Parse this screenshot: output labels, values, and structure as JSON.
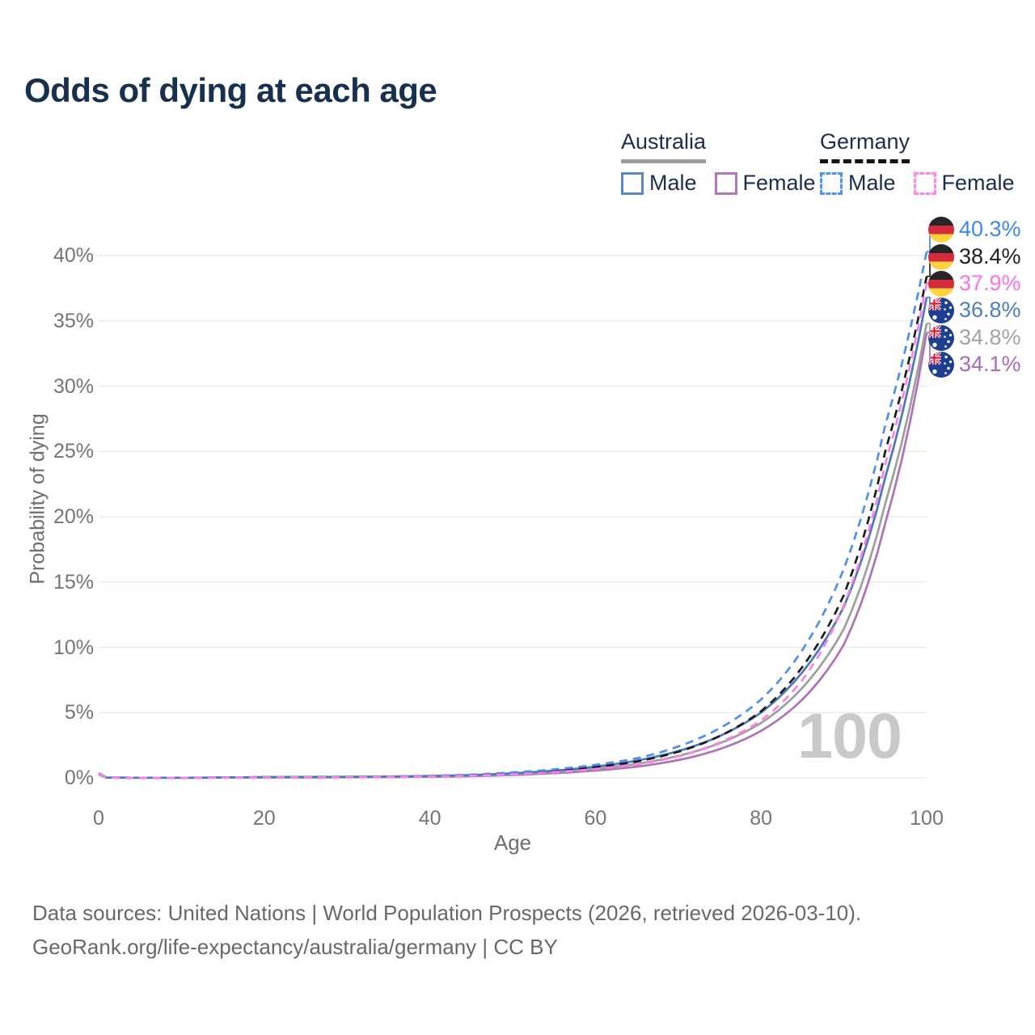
{
  "title": "Odds of dying at each age",
  "legend": {
    "groups": [
      {
        "label": "Australia",
        "line_style": "solid",
        "underline_color": "#9e9e9e",
        "items": [
          {
            "label": "Male",
            "color": "#5b87c7"
          },
          {
            "label": "Female",
            "color": "#b279ba"
          }
        ]
      },
      {
        "label": "Germany",
        "line_style": "dashed",
        "underline_color": "#141414",
        "items": [
          {
            "label": "Male",
            "color": "#4d94f2"
          },
          {
            "label": "Female",
            "color": "#ff85e6"
          }
        ]
      }
    ]
  },
  "chart_data": {
    "type": "line",
    "title": "Odds of dying at each age",
    "xlabel": "Age",
    "ylabel": "Probability of dying",
    "xlim": [
      0,
      100
    ],
    "ylim_percent": [
      0,
      42
    ],
    "x_ticks": [
      0,
      20,
      40,
      60,
      80,
      100
    ],
    "y_ticks": [
      "0%",
      "5%",
      "10%",
      "15%",
      "20%",
      "25%",
      "30%",
      "35%",
      "40%"
    ],
    "grid": "horizontal",
    "grid_color": "#ebebeb",
    "age_counter": "100",
    "ages": [
      0,
      1,
      2,
      5,
      10,
      15,
      20,
      25,
      30,
      35,
      40,
      45,
      50,
      55,
      60,
      65,
      70,
      75,
      80,
      85,
      90,
      95,
      100
    ],
    "series": [
      {
        "id": "au-female",
        "name": "Australia Female",
        "color": "#ad72b8",
        "dash": false,
        "values": [
          0.25,
          0.02,
          0.01,
          0.01,
          0.01,
          0.02,
          0.03,
          0.03,
          0.04,
          0.06,
          0.08,
          0.13,
          0.22,
          0.36,
          0.56,
          0.86,
          1.36,
          2.2,
          3.6,
          6.0,
          10.2,
          19.5,
          34.1
        ]
      },
      {
        "id": "au-total",
        "name": "Australia",
        "color": "#9e9e9e",
        "dash": false,
        "values": [
          0.28,
          0.02,
          0.02,
          0.01,
          0.01,
          0.02,
          0.04,
          0.05,
          0.06,
          0.08,
          0.11,
          0.17,
          0.28,
          0.45,
          0.7,
          1.07,
          1.68,
          2.65,
          4.2,
          6.9,
          11.4,
          21.0,
          34.8
        ]
      },
      {
        "id": "au-male",
        "name": "Australia Male",
        "color": "#4a79bb",
        "dash": false,
        "values": [
          0.3,
          0.02,
          0.02,
          0.01,
          0.01,
          0.03,
          0.06,
          0.07,
          0.08,
          0.1,
          0.14,
          0.21,
          0.35,
          0.55,
          0.86,
          1.32,
          2.05,
          3.2,
          5.0,
          8.1,
          13.1,
          23.0,
          36.8
        ]
      },
      {
        "id": "de-total",
        "name": "Germany",
        "color": "#1c1c1c",
        "dash": true,
        "values": [
          0.32,
          0.03,
          0.02,
          0.01,
          0.01,
          0.02,
          0.05,
          0.06,
          0.07,
          0.09,
          0.13,
          0.2,
          0.34,
          0.54,
          0.83,
          1.25,
          2.0,
          3.2,
          5.1,
          8.5,
          14.0,
          25.0,
          38.4
        ]
      },
      {
        "id": "de-male",
        "name": "Germany Male",
        "color": "#4d8ef2",
        "dash": true,
        "values": [
          0.35,
          0.03,
          0.02,
          0.01,
          0.01,
          0.03,
          0.07,
          0.08,
          0.09,
          0.11,
          0.16,
          0.25,
          0.42,
          0.65,
          1.0,
          1.5,
          2.4,
          3.8,
          6.0,
          9.8,
          16.0,
          27.0,
          40.3
        ]
      },
      {
        "id": "de-female",
        "name": "Germany Female",
        "color": "#ff80e3",
        "dash": true,
        "values": [
          0.3,
          0.02,
          0.02,
          0.01,
          0.01,
          0.02,
          0.03,
          0.04,
          0.05,
          0.07,
          0.1,
          0.16,
          0.27,
          0.44,
          0.68,
          1.03,
          1.65,
          2.7,
          4.4,
          7.5,
          13.2,
          24.0,
          37.9
        ]
      }
    ],
    "end_labels": [
      {
        "country": "germany",
        "series": "de-male",
        "value": "40.3%",
        "line_value": 40.3,
        "color": "#3d87f2"
      },
      {
        "country": "germany",
        "series": "de-total",
        "value": "38.4%",
        "line_value": 38.4,
        "color": "#212121"
      },
      {
        "country": "germany",
        "series": "de-female",
        "value": "37.9%",
        "line_value": 37.9,
        "color": "#ff72de"
      },
      {
        "country": "australia",
        "series": "au-male",
        "value": "36.8%",
        "line_value": 36.8,
        "color": "#4a7ec9"
      },
      {
        "country": "australia",
        "series": "au-total",
        "value": "34.8%",
        "line_value": 34.8,
        "color": "#a3a3a3"
      },
      {
        "country": "australia",
        "series": "au-female",
        "value": "34.1%",
        "line_value": 34.1,
        "color": "#a76db8"
      }
    ]
  },
  "footer": {
    "line1": "Data sources: United Nations | World Population Prospects (2026, retrieved 2026-03-10).",
    "line2": "GeoRank.org/life-expectancy/australia/germany | CC BY"
  }
}
